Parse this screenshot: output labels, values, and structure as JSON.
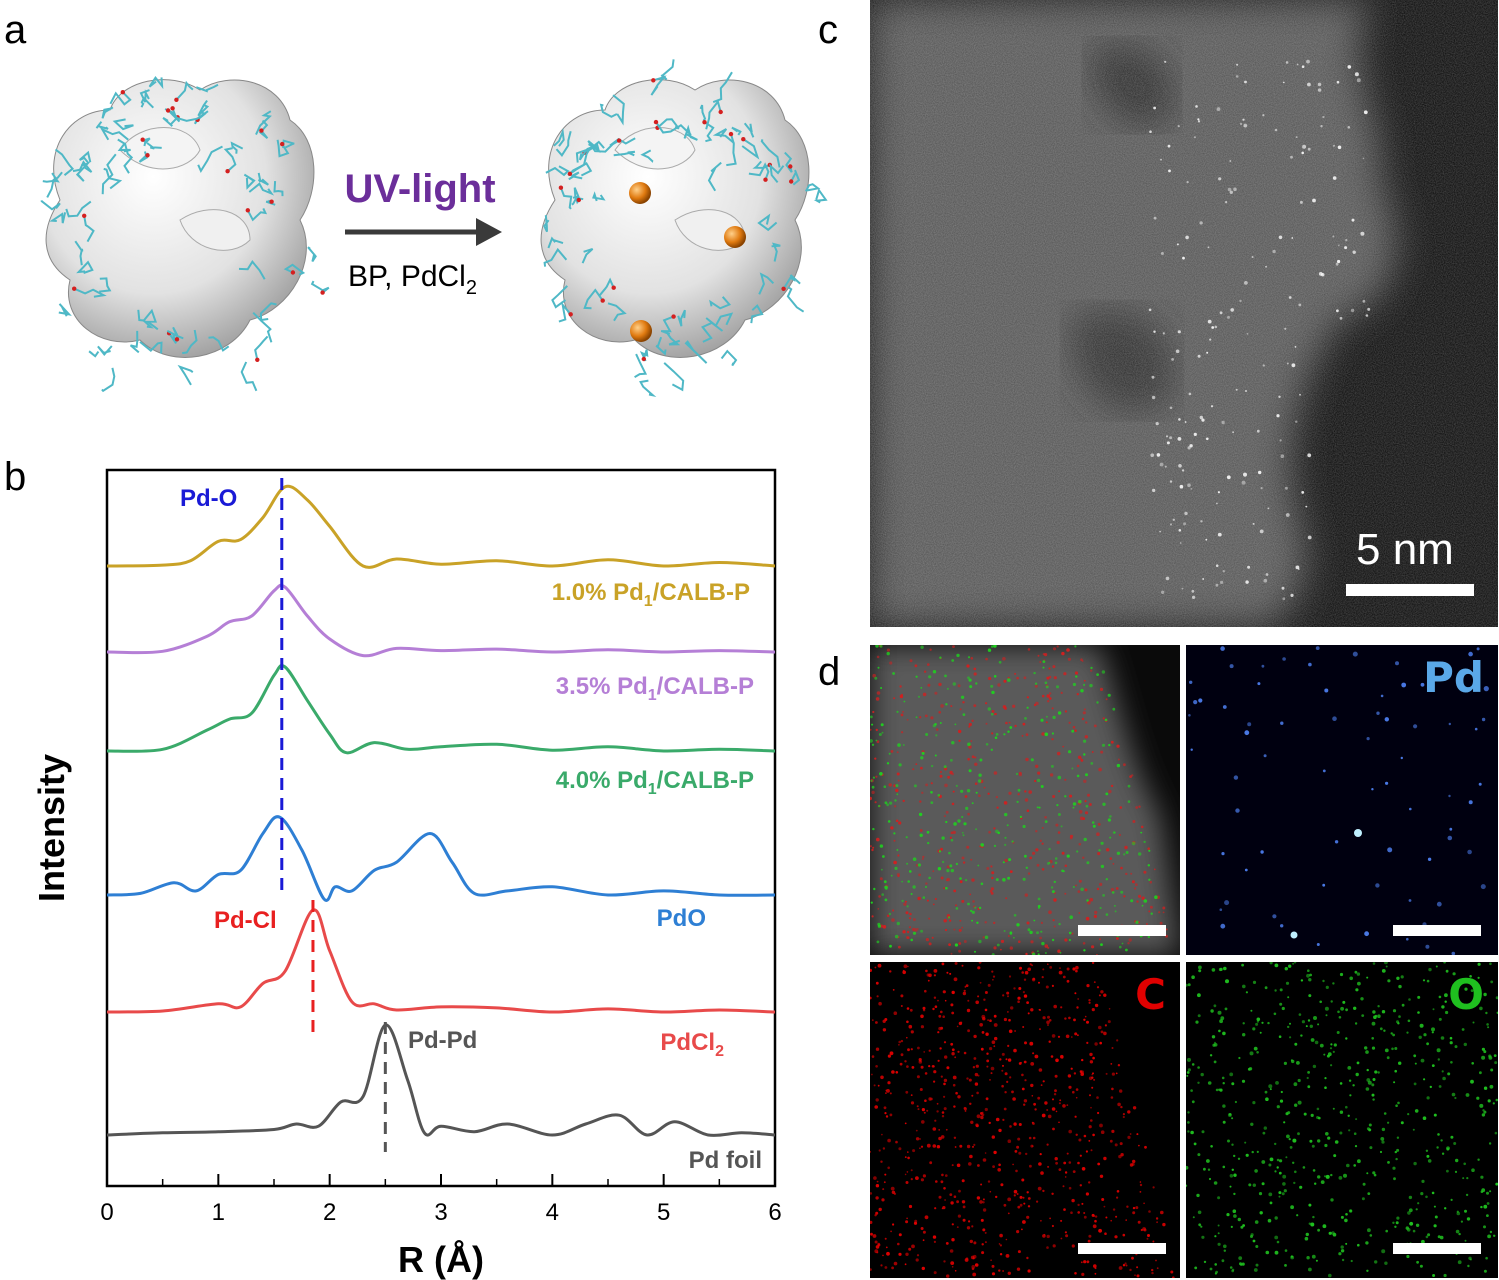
{
  "panel_labels": {
    "a": "a",
    "b": "b",
    "c": "c",
    "d": "d"
  },
  "panel_a": {
    "arrow_top": "UV-light",
    "arrow_bottom_main": "BP, PdCl",
    "arrow_bottom_sub": "2",
    "colors": {
      "protein": "#e6e6e6",
      "polymer": "#4fb8c6",
      "pd_atom": "#e07a10",
      "uv_text": "#6b2e9a"
    }
  },
  "chart_data": {
    "type": "line",
    "title": "",
    "xlabel": "R (Å)",
    "ylabel": "Intensity",
    "xlim": [
      0,
      6
    ],
    "xticks": [
      "0",
      "1",
      "2",
      "3",
      "4",
      "5",
      "6"
    ],
    "series": [
      {
        "name_main": "1.0% Pd",
        "name_sub": "1",
        "name_tail": "/CALB-P",
        "color": "#c9a227",
        "x": [
          0,
          0.5,
          0.75,
          1.0,
          1.2,
          1.4,
          1.6,
          1.8,
          2.0,
          2.3,
          2.6,
          3.0,
          3.5,
          4.0,
          4.5,
          5.0,
          5.5,
          6.0
        ],
        "y": [
          0,
          0.01,
          0.06,
          0.28,
          0.3,
          0.55,
          0.9,
          0.75,
          0.45,
          0.0,
          0.08,
          0.02,
          0.06,
          0.0,
          0.07,
          0.0,
          0.04,
          0.0
        ]
      },
      {
        "name_main": "3.5% Pd",
        "name_sub": "1",
        "name_tail": "/CALB-P",
        "color": "#b57fd6",
        "x": [
          0,
          0.5,
          0.9,
          1.1,
          1.3,
          1.5,
          1.6,
          1.8,
          2.0,
          2.3,
          2.6,
          3.0,
          3.5,
          4.0,
          4.5,
          5.0,
          5.5,
          6.0
        ],
        "y": [
          0,
          0.01,
          0.22,
          0.42,
          0.5,
          0.85,
          0.9,
          0.5,
          0.18,
          -0.05,
          0.05,
          0.02,
          0.04,
          0.0,
          0.03,
          0.0,
          0.02,
          0.0
        ]
      },
      {
        "name_main": "4.0% Pd",
        "name_sub": "1",
        "name_tail": "/CALB-P",
        "color": "#3aaa6a",
        "x": [
          0,
          0.5,
          0.9,
          1.1,
          1.3,
          1.5,
          1.6,
          1.8,
          2.0,
          2.15,
          2.4,
          2.7,
          3.0,
          3.5,
          4.0,
          4.5,
          5.0,
          5.5,
          6.0
        ],
        "y": [
          0,
          0.02,
          0.25,
          0.38,
          0.45,
          0.9,
          1.0,
          0.6,
          0.2,
          -0.02,
          0.1,
          0.02,
          0.05,
          0.08,
          0.01,
          0.05,
          0.0,
          0.02,
          0.0
        ]
      },
      {
        "name_main": "PdO",
        "name_sub": "",
        "name_tail": "",
        "color": "#2e7fd4",
        "x": [
          0,
          0.3,
          0.6,
          0.8,
          1.0,
          1.2,
          1.4,
          1.55,
          1.75,
          1.95,
          2.05,
          2.2,
          2.4,
          2.6,
          2.9,
          3.1,
          3.3,
          3.6,
          4.0,
          4.5,
          5.0,
          5.5,
          6.0
        ],
        "y": [
          0,
          0.02,
          0.15,
          0.05,
          0.25,
          0.3,
          0.75,
          0.95,
          0.55,
          -0.05,
          0.1,
          0.05,
          0.3,
          0.4,
          0.75,
          0.4,
          0.02,
          0.05,
          0.1,
          0.0,
          0.05,
          0.0,
          0.0
        ]
      },
      {
        "name_main": "PdCl",
        "name_sub": "2",
        "name_tail": "",
        "color": "#e84a4a",
        "x": [
          0,
          0.5,
          1.0,
          1.2,
          1.4,
          1.6,
          1.85,
          2.0,
          2.2,
          2.4,
          2.6,
          3.0,
          3.5,
          4.0,
          4.5,
          5.0,
          5.5,
          6.0
        ],
        "y": [
          0,
          0.01,
          0.08,
          0.05,
          0.28,
          0.4,
          1.0,
          0.6,
          0.1,
          0.08,
          0.02,
          0.05,
          0.04,
          0.0,
          0.03,
          0.0,
          0.02,
          0.0
        ]
      },
      {
        "name_main": "Pd foil",
        "name_sub": "",
        "name_tail": "",
        "color": "#555555",
        "x": [
          0,
          0.5,
          1.0,
          1.5,
          1.7,
          1.9,
          2.1,
          2.3,
          2.5,
          2.7,
          2.85,
          3.0,
          3.3,
          3.6,
          4.0,
          4.3,
          4.6,
          4.85,
          5.1,
          5.4,
          5.7,
          6.0
        ],
        "y": [
          0,
          0.02,
          0.03,
          0.05,
          0.1,
          0.08,
          0.3,
          0.35,
          1.0,
          0.5,
          0.02,
          0.08,
          0.03,
          0.1,
          0.0,
          0.1,
          0.18,
          0.0,
          0.12,
          0.0,
          0.02,
          0.0
        ]
      }
    ],
    "annotations": [
      {
        "text": "Pd-O",
        "x": 1.57,
        "color": "#1a1ad6"
      },
      {
        "text": "Pd-Cl",
        "x": 1.85,
        "color": "#e82020"
      },
      {
        "text": "Pd-Pd",
        "x": 2.5,
        "color": "#555555"
      }
    ],
    "grid": false
  },
  "panel_c": {
    "scale_label": "5 nm"
  },
  "panel_d": {
    "labels": {
      "pd": "Pd",
      "c": "C",
      "o": "O"
    },
    "colors": {
      "pd": "#5aa8e8",
      "c": "#e00000",
      "o": "#1fc01f"
    }
  }
}
